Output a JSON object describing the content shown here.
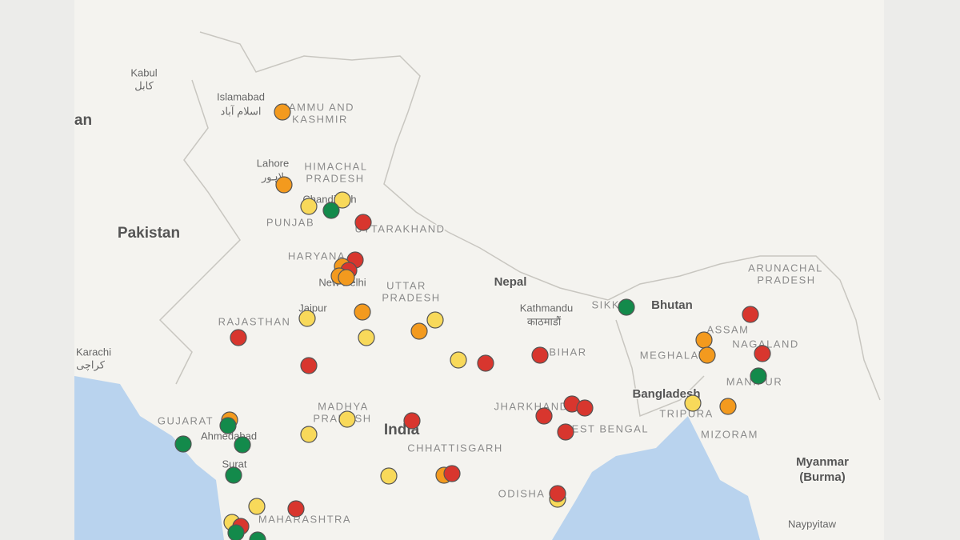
{
  "labels": [
    {
      "text": "Kabul"
    },
    {
      "text": "کابل"
    },
    {
      "text": "an"
    },
    {
      "text": "Islamabad"
    },
    {
      "text": "اسلام آباد"
    },
    {
      "text": "JAMMU AND"
    },
    {
      "text": "KASHMIR"
    },
    {
      "text": "Lahore"
    },
    {
      "text": "لاہور"
    },
    {
      "text": "HIMACHAL"
    },
    {
      "text": "PRADESH"
    },
    {
      "text": "Chandigarh"
    },
    {
      "text": "PUNJAB"
    },
    {
      "text": "UTTARAKHAND"
    },
    {
      "text": "Pakistan"
    },
    {
      "text": "HARYANA"
    },
    {
      "text": "New Delhi"
    },
    {
      "text": "UTTAR"
    },
    {
      "text": "PRADESH"
    },
    {
      "text": "Nepal"
    },
    {
      "text": "Kathmandu"
    },
    {
      "text": "काठमाडौं"
    },
    {
      "text": "SIKKIM"
    },
    {
      "text": "Bhutan"
    },
    {
      "text": "ARUNACHAL"
    },
    {
      "text": "PRADESH"
    },
    {
      "text": "Jaipur"
    },
    {
      "text": "RAJASTHAN"
    },
    {
      "text": "ASSAM"
    },
    {
      "text": "MEGHALAYA"
    },
    {
      "text": "NAGALAND"
    },
    {
      "text": "BIHAR"
    },
    {
      "text": "Karachi"
    },
    {
      "text": "کراچی"
    },
    {
      "text": "MANIPUR"
    },
    {
      "text": "Bangladesh"
    },
    {
      "text": "JHARKHAND"
    },
    {
      "text": "MADHYA"
    },
    {
      "text": "PRADESH"
    },
    {
      "text": "India"
    },
    {
      "text": "WEST BENGAL"
    },
    {
      "text": "GUJARAT"
    },
    {
      "text": "Ahmedabad"
    },
    {
      "text": "TRIPURA"
    },
    {
      "text": "CHHATTISGARH"
    },
    {
      "text": "MIZORAM"
    },
    {
      "text": "Myanmar"
    },
    {
      "text": "(Burma)"
    },
    {
      "text": "Surat"
    },
    {
      "text": "ODISHA"
    },
    {
      "text": "MAHARASHTRA"
    },
    {
      "text": "Naypyitaw"
    }
  ]
}
